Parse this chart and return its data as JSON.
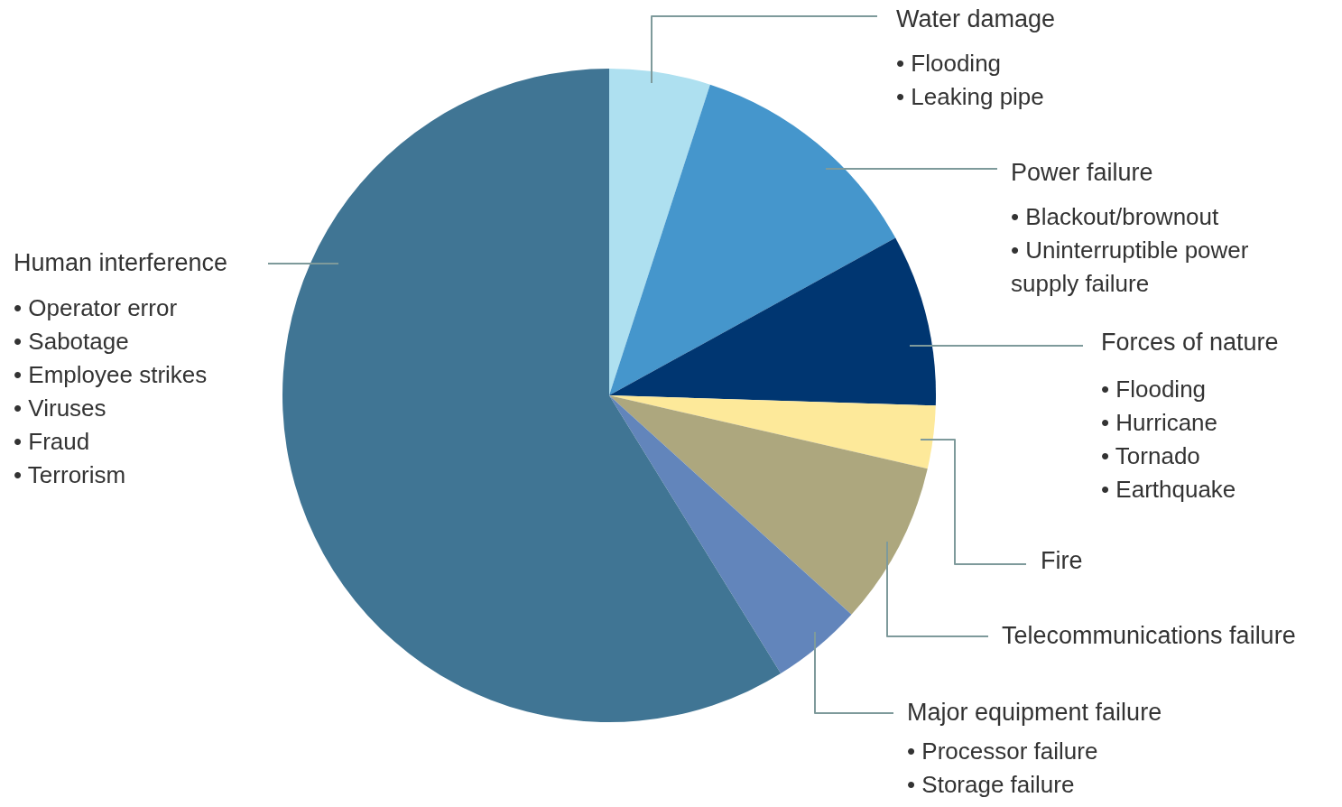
{
  "chart_data": {
    "type": "pie",
    "categories": [
      "Water damage",
      "Power failure",
      "Forces of nature",
      "Fire",
      "Telecommunications failure",
      "Major equipment failure",
      "Human interference"
    ],
    "values": [
      5.0,
      12.0,
      8.5,
      3.1,
      8.1,
      4.5,
      58.8
    ],
    "colors": [
      "#aee0f0",
      "#4596cc",
      "#003671",
      "#fde99a",
      "#ada77e",
      "#6285bb",
      "#407594"
    ],
    "annotations": [
      {
        "text": "• Flooding\n• Leaking pipe",
        "x": "Water damage"
      },
      {
        "text": "• Blackout/brownout\n• Uninterruptible power\n   supply failure",
        "x": "Power failure"
      },
      {
        "text": "• Flooding\n• Hurricane\n• Tornado\n• Earthquake",
        "x": "Forces of nature"
      },
      {
        "text": "• Processor failure\n• Storage failure",
        "x": "Major equipment failure"
      },
      {
        "text": "• Operator error\n• Sabotage\n• Employee strikes\n• Viruses\n• Fraud\n• Terrorism",
        "x": "Human interference"
      }
    ]
  }
}
